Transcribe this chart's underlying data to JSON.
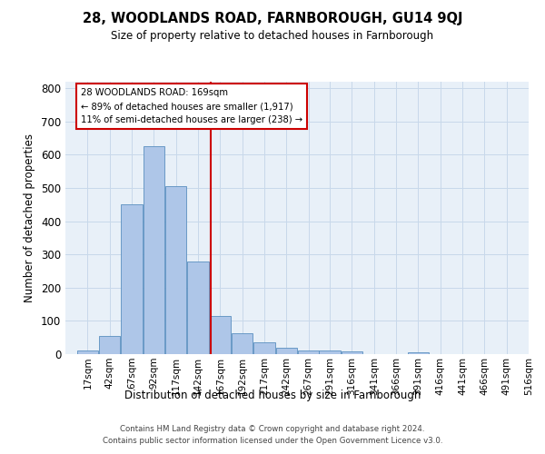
{
  "title": "28, WOODLANDS ROAD, FARNBOROUGH, GU14 9QJ",
  "subtitle": "Size of property relative to detached houses in Farnborough",
  "xlabel": "Distribution of detached houses by size in Farnborough",
  "ylabel": "Number of detached properties",
  "bin_labels": [
    "17sqm",
    "42sqm",
    "67sqm",
    "92sqm",
    "117sqm",
    "142sqm",
    "167sqm",
    "192sqm",
    "217sqm",
    "242sqm",
    "267sqm",
    "291sqm",
    "316sqm",
    "341sqm",
    "366sqm",
    "391sqm",
    "416sqm",
    "441sqm",
    "466sqm",
    "491sqm",
    "516sqm"
  ],
  "bar_heights": [
    10,
    55,
    450,
    625,
    505,
    280,
    115,
    62,
    35,
    20,
    10,
    10,
    8,
    0,
    0,
    6,
    0,
    0,
    0,
    0,
    0
  ],
  "bin_edges": [
    17,
    42,
    67,
    92,
    117,
    142,
    167,
    192,
    217,
    242,
    267,
    291,
    316,
    341,
    366,
    391,
    416,
    441,
    466,
    491,
    516
  ],
  "bar_color": "#aec6e8",
  "bar_edge_color": "#5a8fc0",
  "vline_x": 169,
  "vline_color": "#cc0000",
  "annotation_line1": "28 WOODLANDS ROAD: 169sqm",
  "annotation_line2": "← 89% of detached houses are smaller (1,917)",
  "annotation_line3": "11% of semi-detached houses are larger (238) →",
  "annotation_box_color": "#ffffff",
  "annotation_box_edge": "#cc0000",
  "ylim": [
    0,
    820
  ],
  "yticks": [
    0,
    100,
    200,
    300,
    400,
    500,
    600,
    700,
    800
  ],
  "grid_color": "#c8d8ea",
  "bg_color": "#e8f0f8",
  "footer1": "Contains HM Land Registry data © Crown copyright and database right 2024.",
  "footer2": "Contains public sector information licensed under the Open Government Licence v3.0."
}
